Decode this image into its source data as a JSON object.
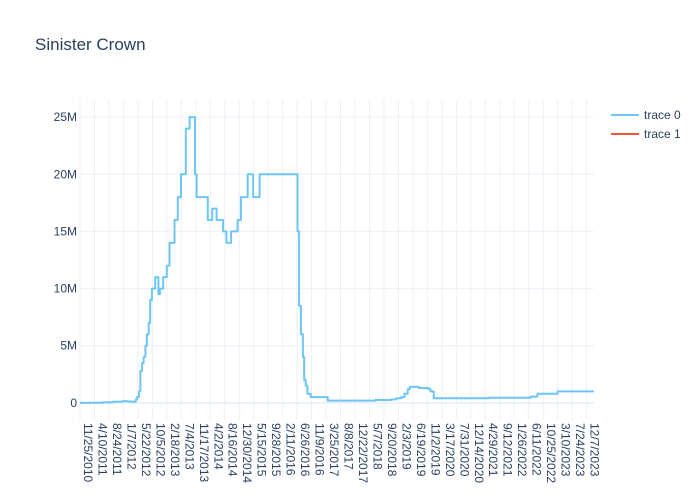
{
  "chart_data": {
    "type": "line",
    "line_shape": "step",
    "title": "Sinister Crown",
    "xlabel": "",
    "ylabel": "",
    "x_range": [
      "2010-11-25",
      "2024-02-15"
    ],
    "ylim": [
      -1500000,
      26500000
    ],
    "grid": true,
    "legend_position": "top-right",
    "y_ticks": [
      {
        "value": 0,
        "label": "0"
      },
      {
        "value": 5000000,
        "label": "5M"
      },
      {
        "value": 10000000,
        "label": "10M"
      },
      {
        "value": 15000000,
        "label": "15M"
      },
      {
        "value": 20000000,
        "label": "20M"
      },
      {
        "value": 25000000,
        "label": "25M"
      }
    ],
    "x_tick_labels": [
      "11/25/2010",
      "4/10/2011",
      "8/24/2011",
      "1/7/2012",
      "5/22/2012",
      "10/5/2012",
      "2/18/2013",
      "7/4/2013",
      "11/17/2013",
      "4/2/2014",
      "8/16/2014",
      "12/30/2014",
      "5/15/2015",
      "9/28/2015",
      "2/11/2016",
      "6/26/2016",
      "11/9/2016",
      "3/25/2017",
      "8/8/2017",
      "12/22/2017",
      "5/7/2018",
      "9/20/2018",
      "2/3/2019",
      "6/19/2019",
      "11/2/2019",
      "3/17/2020",
      "7/31/2020",
      "12/14/2020",
      "4/29/2021",
      "9/12/2021",
      "1/26/2022",
      "6/11/2022",
      "10/25/2022",
      "3/10/2023",
      "7/24/2023",
      "12/7/2023"
    ],
    "series": [
      {
        "name": "trace 0",
        "color": "#636efa",
        "display_color": "#6ec6f5",
        "x": [
          "2010-11-25",
          "2011-03-01",
          "2011-07-01",
          "2011-10-01",
          "2012-01-01",
          "2012-02-15",
          "2012-04-01",
          "2012-05-01",
          "2012-05-15",
          "2012-06-01",
          "2012-06-15",
          "2012-07-01",
          "2012-07-15",
          "2012-08-01",
          "2012-08-15",
          "2012-09-01",
          "2012-09-15",
          "2012-10-01",
          "2012-11-01",
          "2012-12-01",
          "2012-12-15",
          "2013-01-15",
          "2013-02-18",
          "2013-03-15",
          "2013-04-01",
          "2013-05-01",
          "2013-06-01",
          "2013-07-01",
          "2013-08-15",
          "2013-09-20",
          "2013-10-20",
          "2013-11-10",
          "2013-11-25",
          "2014-03-10",
          "2014-04-20",
          "2014-06-01",
          "2014-08-01",
          "2014-09-01",
          "2014-10-15",
          "2014-12-15",
          "2015-01-15",
          "2015-03-20",
          "2015-05-10",
          "2015-07-10",
          "2015-08-25",
          "2015-10-20",
          "2015-12-10",
          "2016-06-30",
          "2016-07-15",
          "2016-08-01",
          "2016-08-20",
          "2016-09-01",
          "2016-09-15",
          "2016-10-01",
          "2016-11-01",
          "2016-11-20",
          "2017-04-10",
          "2017-08-01",
          "2018-07-01",
          "2018-12-01",
          "2019-01-15",
          "2019-03-01",
          "2019-04-01",
          "2019-05-01",
          "2019-05-20",
          "2019-06-10",
          "2019-08-15",
          "2019-11-15",
          "2019-12-01",
          "2020-01-01",
          "2021-05-01",
          "2021-06-01",
          "2022-05-01",
          "2022-07-01",
          "2022-09-01",
          "2023-03-10",
          "2024-02-15"
        ],
        "y": [
          0,
          10000,
          50000,
          100000,
          150000,
          120000,
          100000,
          300000,
          500000,
          1000000,
          2800000,
          3500000,
          4000000,
          5000000,
          6000000,
          7000000,
          9000000,
          10000000,
          11000000,
          9500000,
          10000000,
          11000000,
          12000000,
          14000000,
          14000000,
          16000000,
          18000000,
          20000000,
          24000000,
          25000000,
          25000000,
          20000000,
          18000000,
          16000000,
          17000000,
          16000000,
          15000000,
          14000000,
          15000000,
          16000000,
          18000000,
          20000000,
          18000000,
          20000000,
          20000000,
          20000000,
          20000000,
          15000000,
          8500000,
          6000000,
          4000000,
          2000000,
          1500000,
          800000,
          500000,
          500000,
          200000,
          200000,
          250000,
          300000,
          400000,
          500000,
          800000,
          1200000,
          1400000,
          1400000,
          1300000,
          1200000,
          1000000,
          400000,
          400000,
          450000,
          450000,
          550000,
          800000,
          1000000,
          1000000
        ]
      },
      {
        "name": "trace 1",
        "color": "#ef553b",
        "x": [],
        "y": []
      }
    ]
  }
}
